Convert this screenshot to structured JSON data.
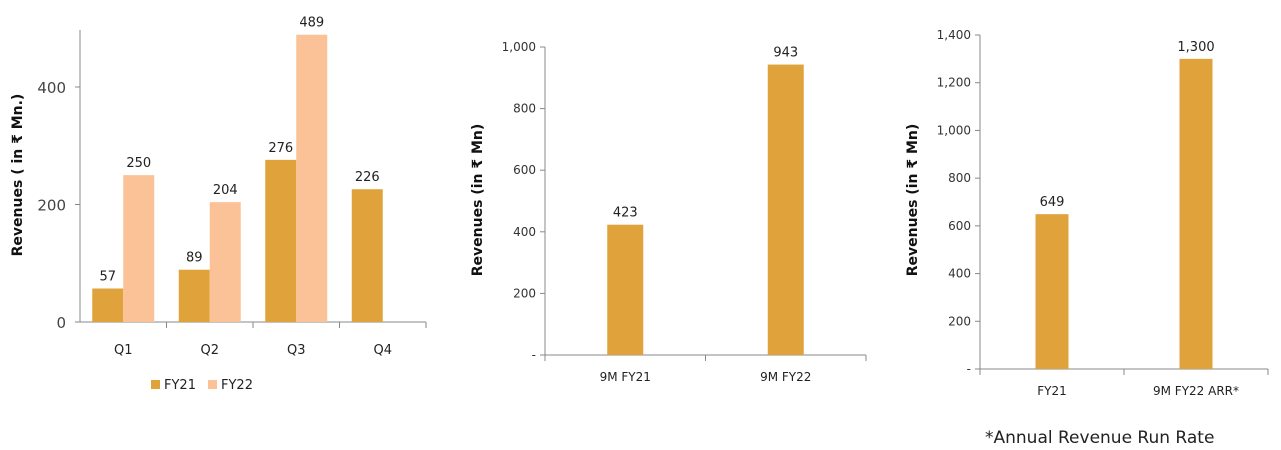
{
  "colors": {
    "fy21": "#E0A23A",
    "fy22": "#FAC296",
    "axis": "#888888"
  },
  "footnote": "*Annual Revenue Run Rate",
  "chart_data": [
    {
      "type": "bar",
      "ylabel": "Revenues ( in ₹ Mn.)",
      "categories": [
        "Q1",
        "Q2",
        "Q3",
        "Q4"
      ],
      "yticks": [
        "0",
        "200",
        "400"
      ],
      "ylim": [
        0,
        520
      ],
      "series": [
        {
          "name": "FY21",
          "values": [
            57,
            89,
            276,
            226
          ],
          "labels": [
            "57",
            "89",
            "276",
            "226"
          ]
        },
        {
          "name": "FY22",
          "values": [
            250,
            204,
            489,
            null
          ],
          "labels": [
            "250",
            "204",
            "489",
            ""
          ]
        }
      ],
      "legend": "bottom"
    },
    {
      "type": "bar",
      "ylabel": "Revenues (in ₹ Mn)",
      "categories": [
        "9M FY21",
        "9M FY22"
      ],
      "yticks": [
        "-",
        "200",
        "400",
        "600",
        "800",
        "1,000"
      ],
      "ylim": [
        0,
        1000
      ],
      "series": [
        {
          "values": [
            423,
            943
          ],
          "labels": [
            "423",
            "943"
          ]
        }
      ]
    },
    {
      "type": "bar",
      "ylabel": "Revenues (in ₹ Mn)",
      "categories": [
        "FY21",
        "9M FY22 ARR*"
      ],
      "yticks": [
        "-",
        "200",
        "400",
        "600",
        "800",
        "1,000",
        "1,200",
        "1,400"
      ],
      "ylim": [
        0,
        1400
      ],
      "series": [
        {
          "values": [
            649,
            1300
          ],
          "labels": [
            "649",
            "1,300"
          ]
        }
      ]
    }
  ]
}
